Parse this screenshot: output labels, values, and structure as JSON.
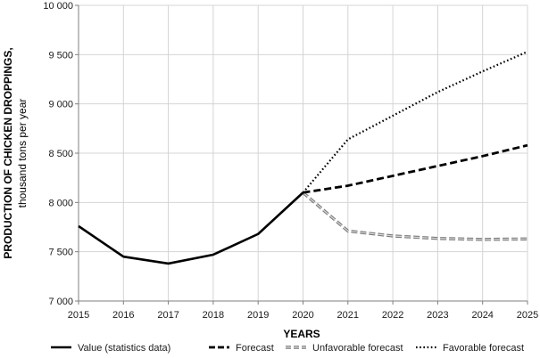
{
  "chart_data": {
    "type": "line",
    "title": "",
    "xlabel": "YEARS",
    "ylabel": "PRODUCTION OF CHICKEN DROPPINGS,",
    "ylabel_sub": "thousand tons per year",
    "x": [
      2015,
      2016,
      2017,
      2018,
      2019,
      2020,
      2021,
      2022,
      2023,
      2024,
      2025
    ],
    "x_tick_labels": [
      "2015",
      "2016",
      "2017",
      "2018",
      "2019",
      "2020",
      "2021",
      "2022",
      "2023",
      "2024",
      "2025"
    ],
    "xlim": [
      2015,
      2025
    ],
    "ylim": [
      7000,
      10000
    ],
    "y_ticks": [
      7000,
      7500,
      8000,
      8500,
      9000,
      9500,
      10000
    ],
    "y_tick_labels": [
      "7 000",
      "7 500",
      "8 000",
      "8 500",
      "9 000",
      "9 500",
      "10 000"
    ],
    "grid": true,
    "legend_position": "bottom",
    "series": [
      {
        "name": "Value (statistics data)",
        "style": "solid",
        "color": "#000000",
        "x": [
          2015,
          2016,
          2017,
          2018,
          2019,
          2020
        ],
        "values": [
          7760,
          7450,
          7380,
          7470,
          7680,
          8100
        ]
      },
      {
        "name": "Forecast",
        "style": "dashed",
        "color": "#000000",
        "x": [
          2020,
          2021,
          2022,
          2023,
          2024,
          2025
        ],
        "values": [
          8100,
          8170,
          8270,
          8370,
          8470,
          8580
        ]
      },
      {
        "name": "Unfavorable forecast",
        "style": "double-dashed-gray",
        "color": "#808080",
        "x": [
          2020,
          2021,
          2022,
          2023,
          2024,
          2025
        ],
        "values": [
          8100,
          7710,
          7660,
          7635,
          7625,
          7630
        ]
      },
      {
        "name": "Favorable forecast",
        "style": "dotted",
        "color": "#000000",
        "x": [
          2020,
          2021,
          2022,
          2023,
          2024,
          2025
        ],
        "values": [
          8100,
          8640,
          8880,
          9120,
          9330,
          9530
        ]
      }
    ]
  }
}
